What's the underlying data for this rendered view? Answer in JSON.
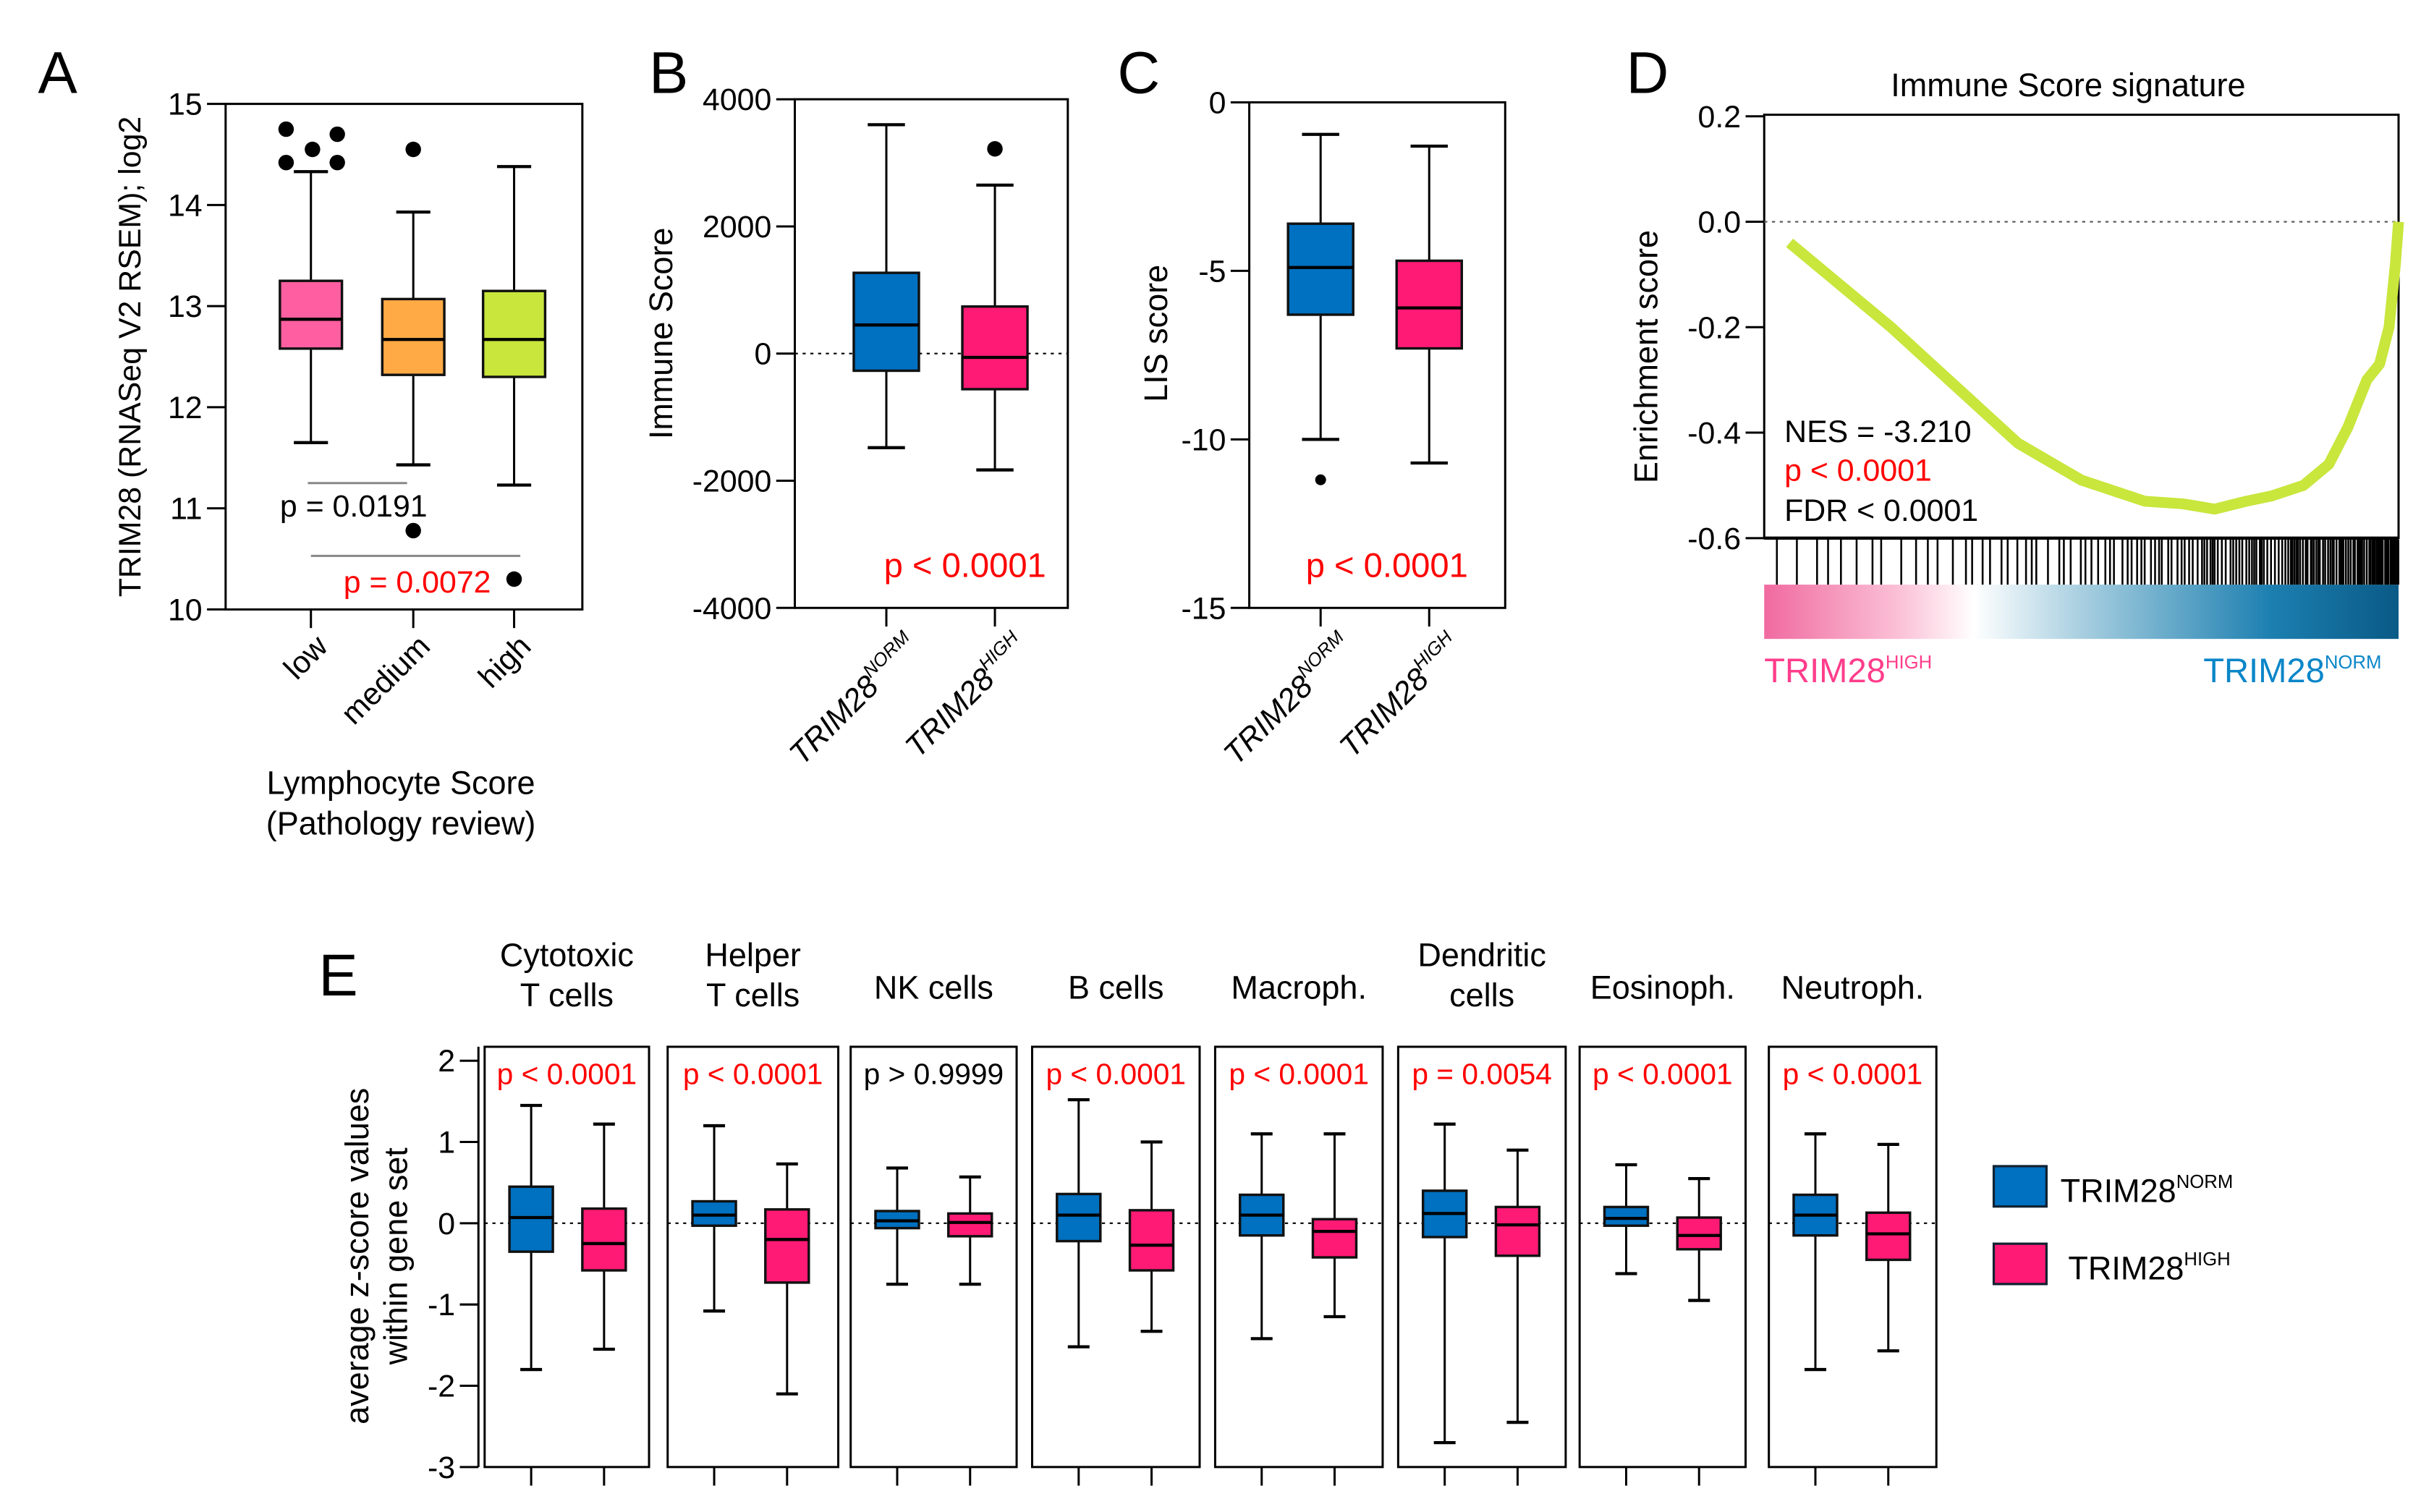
{
  "colors": {
    "norm": "#0070c0",
    "high": "#ff1a75",
    "low": "#ff5fa0",
    "medium": "#ffaa44",
    "highcat": "#c8e63c",
    "curve": "#c8e63c",
    "pvalue": "#ff0000"
  },
  "panel_letters": [
    "A",
    "B",
    "C",
    "D",
    "E"
  ],
  "chart_data": [
    {
      "id": "A",
      "type": "box",
      "ylabel": "TRIM28 (RNASeq V2 RSEM); log2",
      "xlabel": [
        "Lymphocyte Score",
        "(Pathology review)"
      ],
      "ylim": [
        10,
        15
      ],
      "yticks": [
        "10",
        "11",
        "12",
        "13",
        "14",
        "15"
      ],
      "categories": [
        "low",
        "medium",
        "high"
      ],
      "boxes": [
        {
          "min": 11.65,
          "q1": 12.58,
          "median": 12.87,
          "q3": 13.25,
          "max": 14.33,
          "outliers": [
            14.75,
            14.42,
            14.55,
            14.7,
            14.42
          ]
        },
        {
          "min": 11.43,
          "q1": 12.32,
          "median": 12.67,
          "q3": 13.07,
          "max": 13.93,
          "outliers": [
            14.55,
            10.78
          ]
        },
        {
          "min": 11.23,
          "q1": 12.3,
          "median": 12.67,
          "q3": 13.15,
          "max": 14.38,
          "outliers": [
            10.3
          ]
        }
      ],
      "annotations": [
        "p = 0.0191",
        "p = 0.0072"
      ]
    },
    {
      "id": "B",
      "type": "box",
      "ylabel": "Immune Score",
      "ylim": [
        -4000,
        4000
      ],
      "yticks": [
        "-4000",
        "-2000",
        "0",
        "2000",
        "4000"
      ],
      "categories": [
        {
          "base": "TRIM28",
          "sup": "NORM"
        },
        {
          "base": "TRIM28",
          "sup": "HIGH"
        }
      ],
      "boxes": [
        {
          "min": -1480,
          "q1": -270,
          "median": 450,
          "q3": 1270,
          "max": 3600,
          "outliers": []
        },
        {
          "min": -1830,
          "q1": -560,
          "median": -60,
          "q3": 740,
          "max": 2650,
          "outliers": [
            3220
          ]
        }
      ],
      "annotation": "p < 0.0001"
    },
    {
      "id": "C",
      "type": "box",
      "ylabel": "LIS score",
      "ylim": [
        -15,
        0
      ],
      "yticks": [
        "-15",
        "-10",
        "-5",
        "0"
      ],
      "categories": [
        {
          "base": "TRIM28",
          "sup": "NORM"
        },
        {
          "base": "TRIM28",
          "sup": "HIGH"
        }
      ],
      "boxes": [
        {
          "min": -10.0,
          "q1": -6.3,
          "median": -4.9,
          "q3": -3.6,
          "max": -0.95,
          "outliers": [
            -11.2
          ]
        },
        {
          "min": -10.7,
          "q1": -7.3,
          "median": -6.1,
          "q3": -4.7,
          "max": -1.3,
          "outliers": []
        }
      ],
      "annotation": "p < 0.0001"
    },
    {
      "id": "D",
      "type": "line",
      "title": "Immune Score signature",
      "ylabel": "Enrichment score",
      "ylim": [
        -0.6,
        0.2
      ],
      "yticks": [
        "-0.6",
        "-0.4",
        "-0.2",
        "0.0",
        "0.2"
      ],
      "rank_fraction": [
        0.04,
        0.1,
        0.2,
        0.3,
        0.4,
        0.5,
        0.6,
        0.66,
        0.71,
        0.76,
        0.8,
        0.85,
        0.89,
        0.92,
        0.95,
        0.97,
        0.985,
        0.995,
        1.0
      ],
      "enrichment": [
        -0.04,
        -0.1,
        -0.2,
        -0.31,
        -0.42,
        -0.49,
        -0.53,
        -0.535,
        -0.545,
        -0.53,
        -0.52,
        -0.5,
        -0.46,
        -0.39,
        -0.3,
        -0.27,
        -0.2,
        -0.08,
        0.0
      ],
      "stats": {
        "nes": "NES = -3.210",
        "p": "p < 0.0001",
        "fdr": "FDR < 0.0001"
      },
      "left_label": {
        "base": "TRIM28",
        "sup": "HIGH"
      },
      "right_label": {
        "base": "TRIM28",
        "sup": "NORM"
      }
    },
    {
      "id": "E",
      "type": "box",
      "ylabel": [
        "average z-score values",
        "within gene set"
      ],
      "ylim": [
        -3,
        2
      ],
      "yticks": [
        "-3",
        "-2",
        "-1",
        "0",
        "1",
        "2"
      ],
      "series": [
        {
          "name": {
            "base": "TRIM28",
            "sup": "NORM"
          }
        },
        {
          "name": {
            "base": "TRIM28",
            "sup": "HIGH"
          }
        }
      ],
      "groups": [
        {
          "title": [
            "Cytotoxic",
            "T cells"
          ],
          "p": "p < 0.0001",
          "sig": true,
          "norm": {
            "min": -1.8,
            "q1": -0.35,
            "median": 0.07,
            "q3": 0.45,
            "max": 1.45
          },
          "high": {
            "min": -1.55,
            "q1": -0.58,
            "median": -0.25,
            "q3": 0.18,
            "max": 1.22
          }
        },
        {
          "title": [
            "Helper",
            "T cells"
          ],
          "p": "p < 0.0001",
          "sig": true,
          "norm": {
            "min": -1.08,
            "q1": -0.03,
            "median": 0.1,
            "q3": 0.27,
            "max": 1.2
          },
          "high": {
            "min": -2.1,
            "q1": -0.73,
            "median": -0.2,
            "q3": 0.17,
            "max": 0.73
          }
        },
        {
          "title": [
            "NK cells"
          ],
          "p": "p > 0.9999",
          "sig": false,
          "norm": {
            "min": -0.75,
            "q1": -0.06,
            "median": 0.03,
            "q3": 0.15,
            "max": 0.68
          },
          "high": {
            "min": -0.75,
            "q1": -0.16,
            "median": 0.01,
            "q3": 0.12,
            "max": 0.57
          }
        },
        {
          "title": [
            "B cells"
          ],
          "p": "p < 0.0001",
          "sig": true,
          "norm": {
            "min": -1.52,
            "q1": -0.22,
            "median": 0.1,
            "q3": 0.36,
            "max": 1.52
          },
          "high": {
            "min": -1.33,
            "q1": -0.58,
            "median": -0.27,
            "q3": 0.16,
            "max": 1.0
          }
        },
        {
          "title": [
            "Macroph."
          ],
          "p": "p < 0.0001",
          "sig": true,
          "norm": {
            "min": -1.42,
            "q1": -0.15,
            "median": 0.1,
            "q3": 0.35,
            "max": 1.1
          },
          "high": {
            "min": -1.15,
            "q1": -0.42,
            "median": -0.1,
            "q3": 0.05,
            "max": 1.1
          }
        },
        {
          "title": [
            "Dendritic",
            "cells"
          ],
          "p": "p = 0.0054",
          "sig": true,
          "norm": {
            "min": -2.7,
            "q1": -0.17,
            "median": 0.12,
            "q3": 0.4,
            "max": 1.22
          },
          "high": {
            "min": -2.45,
            "q1": -0.4,
            "median": -0.02,
            "q3": 0.2,
            "max": 0.9
          }
        },
        {
          "title": [
            "Eosinoph."
          ],
          "p": "p < 0.0001",
          "sig": true,
          "norm": {
            "min": -0.62,
            "q1": -0.03,
            "median": 0.06,
            "q3": 0.2,
            "max": 0.72
          },
          "high": {
            "min": -0.95,
            "q1": -0.32,
            "median": -0.15,
            "q3": 0.07,
            "max": 0.55
          }
        },
        {
          "title": [
            "Neutroph."
          ],
          "p": "p < 0.0001",
          "sig": true,
          "norm": {
            "min": -1.8,
            "q1": -0.15,
            "median": 0.1,
            "q3": 0.35,
            "max": 1.1
          },
          "high": {
            "min": -1.57,
            "q1": -0.45,
            "median": -0.13,
            "q3": 0.13,
            "max": 0.97
          }
        }
      ]
    }
  ]
}
